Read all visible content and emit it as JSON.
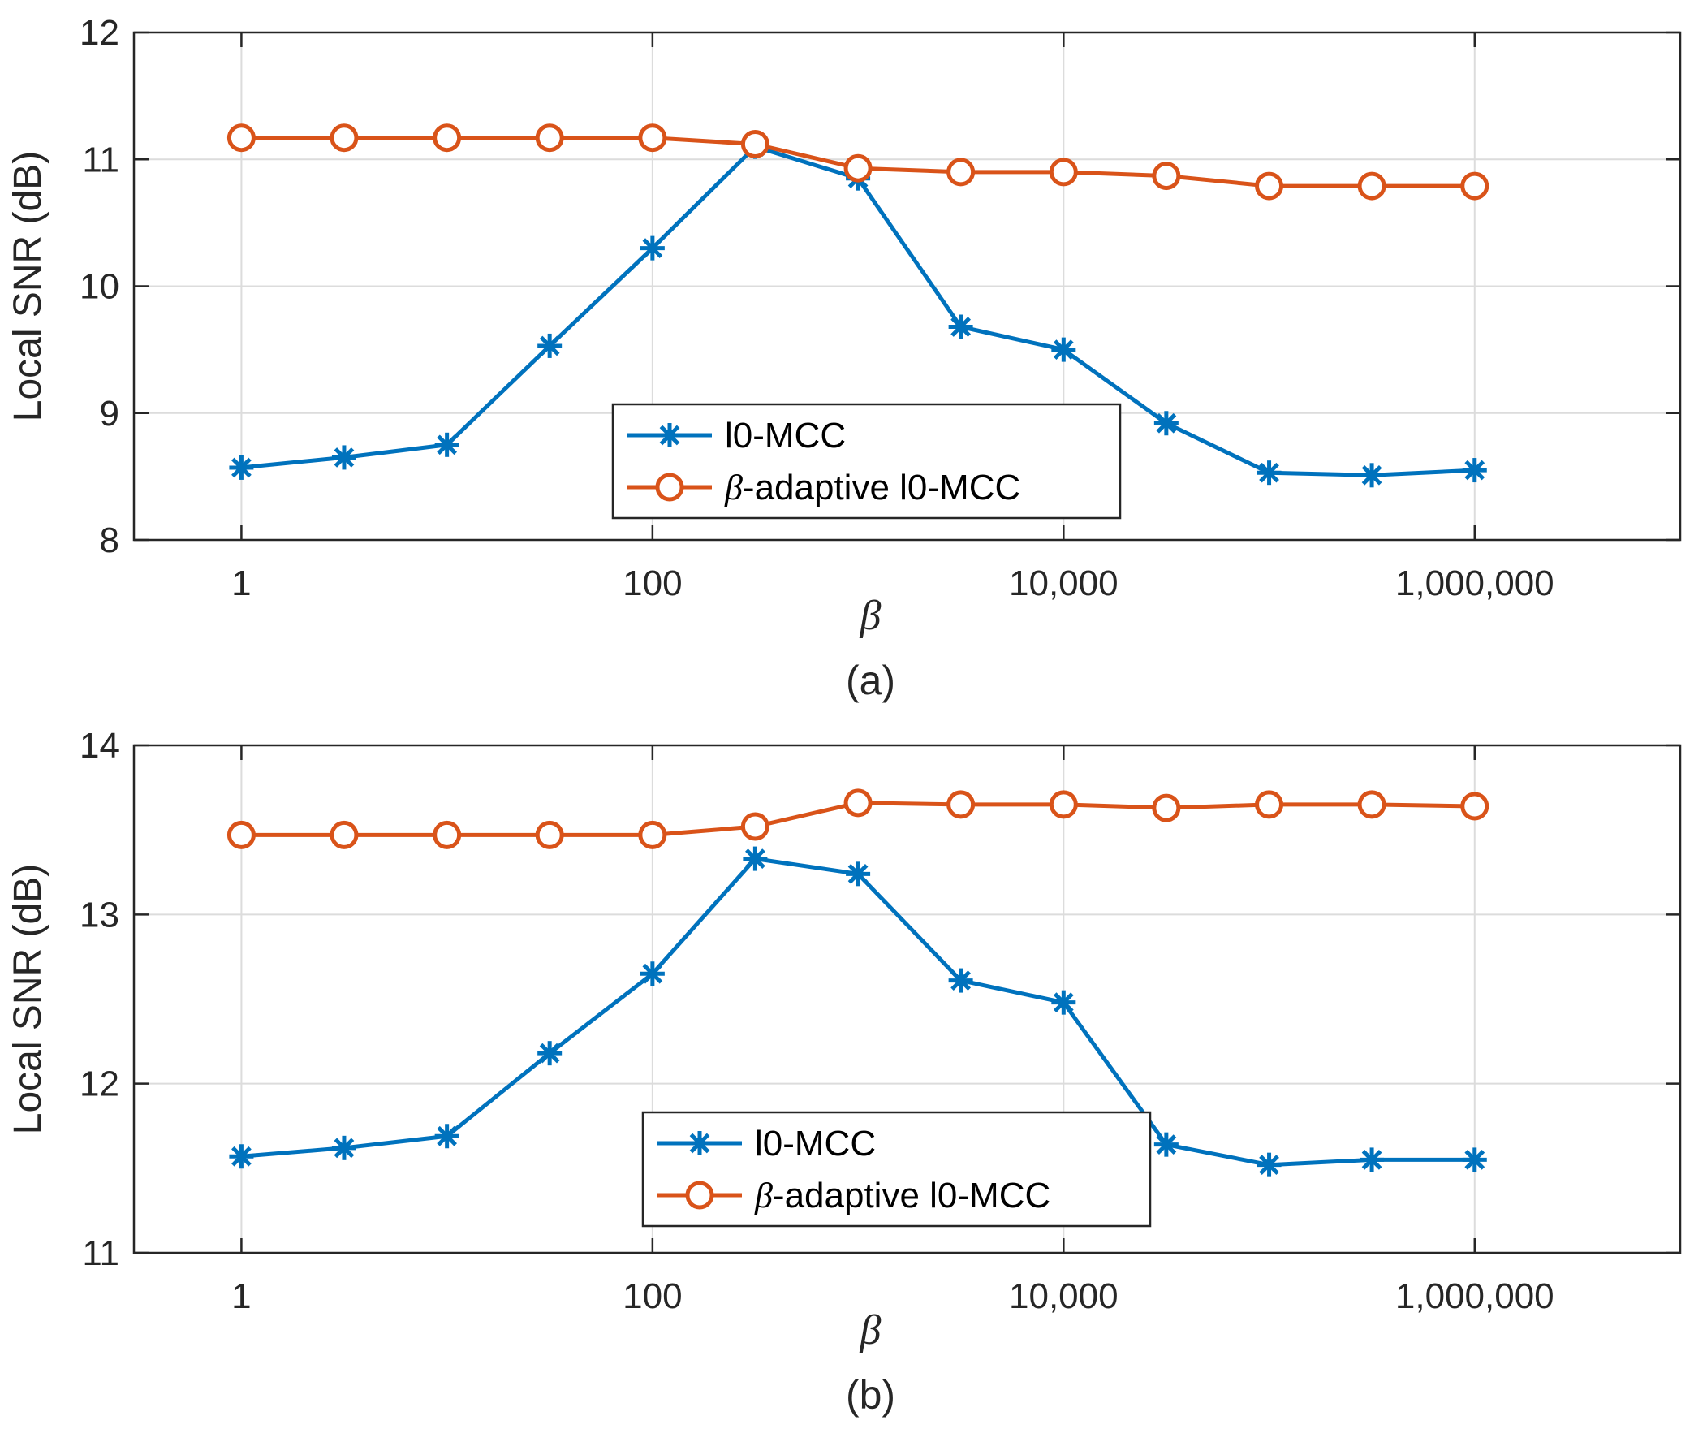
{
  "colors": {
    "series_blue": "#0072BD",
    "series_orange": "#D95319",
    "grid": "#dcdcdc",
    "axis": "#262626"
  },
  "chart_data": [
    {
      "type": "line",
      "panel_caption": "(a)",
      "xlabel": "β",
      "ylabel": "Local SNR (dB)",
      "xscale": "log",
      "xlim": [
        0.3,
        10000000
      ],
      "ylim": [
        8,
        12
      ],
      "yticks": [
        8,
        9,
        10,
        11,
        12
      ],
      "ytick_labels": [
        "8",
        "9",
        "10",
        "11",
        "12"
      ],
      "xticks": [
        1,
        100,
        10000,
        1000000
      ],
      "xtick_labels": [
        "1",
        "100",
        "10,000",
        "1,000,000"
      ],
      "x": [
        1,
        3.16,
        10,
        31.6,
        100,
        316,
        1000,
        3160,
        10000,
        31600,
        100000,
        316000,
        1000000
      ],
      "grid": true,
      "legend_position": "center",
      "series": [
        {
          "name": "l0-MCC",
          "marker": "asterisk",
          "color": "#0072BD",
          "values": [
            8.57,
            8.65,
            8.75,
            9.53,
            10.3,
            11.1,
            10.85,
            9.68,
            9.5,
            8.92,
            8.53,
            8.51,
            8.55
          ]
        },
        {
          "name": "-adaptive l0-MCC",
          "name_prefix": "β",
          "marker": "circle",
          "color": "#D95319",
          "values": [
            11.17,
            11.17,
            11.17,
            11.17,
            11.17,
            11.12,
            10.93,
            10.9,
            10.9,
            10.87,
            10.79,
            10.79,
            10.79
          ]
        }
      ]
    },
    {
      "type": "line",
      "panel_caption": "(b)",
      "xlabel": "β",
      "ylabel": "Local SNR (dB)",
      "xscale": "log",
      "xlim": [
        0.3,
        10000000
      ],
      "ylim": [
        11,
        14
      ],
      "yticks": [
        11,
        12,
        13,
        14
      ],
      "ytick_labels": [
        "11",
        "12",
        "13",
        "14"
      ],
      "xticks": [
        1,
        100,
        10000,
        1000000
      ],
      "xtick_labels": [
        "1",
        "100",
        "10,000",
        "1,000,000"
      ],
      "x": [
        1,
        3.16,
        10,
        31.6,
        100,
        316,
        1000,
        3160,
        10000,
        31600,
        100000,
        316000,
        1000000
      ],
      "grid": true,
      "legend_position": "lower center",
      "series": [
        {
          "name": "l0-MCC",
          "marker": "asterisk",
          "color": "#0072BD",
          "values": [
            11.57,
            11.62,
            11.69,
            12.18,
            12.65,
            13.33,
            13.24,
            12.61,
            12.48,
            11.64,
            11.52,
            11.55,
            11.55
          ]
        },
        {
          "name": "-adaptive l0-MCC",
          "name_prefix": "β",
          "marker": "circle",
          "color": "#D95319",
          "values": [
            13.47,
            13.47,
            13.47,
            13.47,
            13.47,
            13.52,
            13.66,
            13.65,
            13.65,
            13.63,
            13.65,
            13.65,
            13.64
          ]
        }
      ]
    }
  ]
}
